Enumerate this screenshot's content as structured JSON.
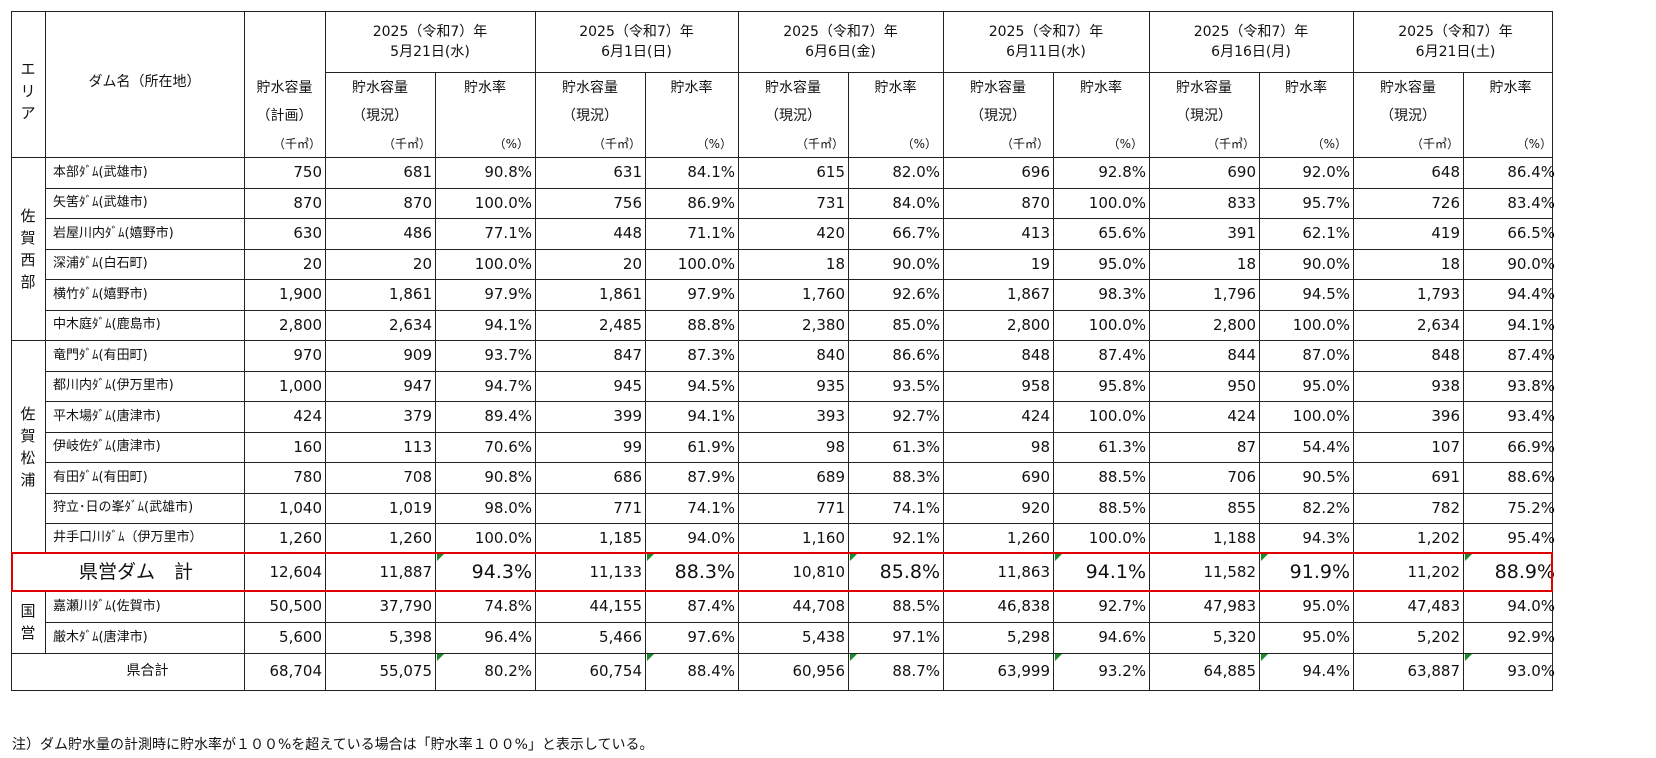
{
  "header": {
    "area_label": "エリア",
    "dam_label": "ダム名（所在地）",
    "plan_cap_label": "貯水容量",
    "plan_sub": "（計画）",
    "unit_cap": "（千㎥）",
    "cur_cap_label": "貯水容量",
    "cur_sub": "（現況）",
    "rate_label": "貯水率",
    "unit_pct": "（%）",
    "year_line": "2025（令和7）年",
    "dates": [
      "5月21日(水)",
      "6月1日(日)",
      "6月6日(金)",
      "6月11日(水)",
      "6月16日(月)",
      "6月21日(土)"
    ]
  },
  "areas": [
    {
      "label": "佐賀西部"
    },
    {
      "label": "佐賀松浦"
    },
    {
      "label": "国営"
    }
  ],
  "rows": [
    {
      "name": "本部ﾀﾞﾑ(武雄市)",
      "plan": "750",
      "cells": [
        [
          "681",
          "90.8%"
        ],
        [
          "631",
          "84.1%"
        ],
        [
          "615",
          "82.0%"
        ],
        [
          "696",
          "92.8%"
        ],
        [
          "690",
          "92.0%"
        ],
        [
          "648",
          "86.4%"
        ]
      ]
    },
    {
      "name": "矢筈ﾀﾞﾑ(武雄市)",
      "plan": "870",
      "cells": [
        [
          "870",
          "100.0%"
        ],
        [
          "756",
          "86.9%"
        ],
        [
          "731",
          "84.0%"
        ],
        [
          "870",
          "100.0%"
        ],
        [
          "833",
          "95.7%"
        ],
        [
          "726",
          "83.4%"
        ]
      ]
    },
    {
      "name": "岩屋川内ﾀﾞﾑ(嬉野市)",
      "plan": "630",
      "cells": [
        [
          "486",
          "77.1%"
        ],
        [
          "448",
          "71.1%"
        ],
        [
          "420",
          "66.7%"
        ],
        [
          "413",
          "65.6%"
        ],
        [
          "391",
          "62.1%"
        ],
        [
          "419",
          "66.5%"
        ]
      ]
    },
    {
      "name": "深浦ﾀﾞﾑ(白石町)",
      "plan": "20",
      "cells": [
        [
          "20",
          "100.0%"
        ],
        [
          "20",
          "100.0%"
        ],
        [
          "18",
          "90.0%"
        ],
        [
          "19",
          "95.0%"
        ],
        [
          "18",
          "90.0%"
        ],
        [
          "18",
          "90.0%"
        ]
      ]
    },
    {
      "name": "横竹ﾀﾞﾑ(嬉野市)",
      "plan": "1,900",
      "cells": [
        [
          "1,861",
          "97.9%"
        ],
        [
          "1,861",
          "97.9%"
        ],
        [
          "1,760",
          "92.6%"
        ],
        [
          "1,867",
          "98.3%"
        ],
        [
          "1,796",
          "94.5%"
        ],
        [
          "1,793",
          "94.4%"
        ]
      ]
    },
    {
      "name": "中木庭ﾀﾞﾑ(鹿島市)",
      "plan": "2,800",
      "cells": [
        [
          "2,634",
          "94.1%"
        ],
        [
          "2,485",
          "88.8%"
        ],
        [
          "2,380",
          "85.0%"
        ],
        [
          "2,800",
          "100.0%"
        ],
        [
          "2,800",
          "100.0%"
        ],
        [
          "2,634",
          "94.1%"
        ]
      ]
    },
    {
      "name": "竜門ﾀﾞﾑ(有田町)",
      "plan": "970",
      "cells": [
        [
          "909",
          "93.7%"
        ],
        [
          "847",
          "87.3%"
        ],
        [
          "840",
          "86.6%"
        ],
        [
          "848",
          "87.4%"
        ],
        [
          "844",
          "87.0%"
        ],
        [
          "848",
          "87.4%"
        ]
      ]
    },
    {
      "name": "都川内ﾀﾞﾑ(伊万里市)",
      "plan": "1,000",
      "cells": [
        [
          "947",
          "94.7%"
        ],
        [
          "945",
          "94.5%"
        ],
        [
          "935",
          "93.5%"
        ],
        [
          "958",
          "95.8%"
        ],
        [
          "950",
          "95.0%"
        ],
        [
          "938",
          "93.8%"
        ]
      ]
    },
    {
      "name": "平木場ﾀﾞﾑ(唐津市)",
      "plan": "424",
      "cells": [
        [
          "379",
          "89.4%"
        ],
        [
          "399",
          "94.1%"
        ],
        [
          "393",
          "92.7%"
        ],
        [
          "424",
          "100.0%"
        ],
        [
          "424",
          "100.0%"
        ],
        [
          "396",
          "93.4%"
        ]
      ]
    },
    {
      "name": "伊岐佐ﾀﾞﾑ(唐津市)",
      "plan": "160",
      "cells": [
        [
          "113",
          "70.6%"
        ],
        [
          "99",
          "61.9%"
        ],
        [
          "98",
          "61.3%"
        ],
        [
          "98",
          "61.3%"
        ],
        [
          "87",
          "54.4%"
        ],
        [
          "107",
          "66.9%"
        ]
      ]
    },
    {
      "name": "有田ﾀﾞﾑ(有田町)",
      "plan": "780",
      "cells": [
        [
          "708",
          "90.8%"
        ],
        [
          "686",
          "87.9%"
        ],
        [
          "689",
          "88.3%"
        ],
        [
          "690",
          "88.5%"
        ],
        [
          "706",
          "90.5%"
        ],
        [
          "691",
          "88.6%"
        ]
      ]
    },
    {
      "name": "狩立･日の峯ﾀﾞﾑ(武雄市)",
      "plan": "1,040",
      "cells": [
        [
          "1,019",
          "98.0%"
        ],
        [
          "771",
          "74.1%"
        ],
        [
          "771",
          "74.1%"
        ],
        [
          "920",
          "88.5%"
        ],
        [
          "855",
          "82.2%"
        ],
        [
          "782",
          "75.2%"
        ]
      ]
    },
    {
      "name": "井手口川ﾀﾞﾑ（伊万里市）",
      "plan": "1,260",
      "cells": [
        [
          "1,260",
          "100.0%"
        ],
        [
          "1,185",
          "94.0%"
        ],
        [
          "1,160",
          "92.1%"
        ],
        [
          "1,260",
          "100.0%"
        ],
        [
          "1,188",
          "94.3%"
        ],
        [
          "1,202",
          "95.4%"
        ]
      ]
    },
    {
      "name": "県営ダム　計",
      "plan": "12,604",
      "cells": [
        [
          "11,887",
          "94.3%"
        ],
        [
          "11,133",
          "88.3%"
        ],
        [
          "10,810",
          "85.8%"
        ],
        [
          "11,863",
          "94.1%"
        ],
        [
          "11,582",
          "91.9%"
        ],
        [
          "11,202",
          "88.9%"
        ]
      ]
    },
    {
      "name": "嘉瀬川ﾀﾞﾑ(佐賀市)",
      "plan": "50,500",
      "cells": [
        [
          "37,790",
          "74.8%"
        ],
        [
          "44,155",
          "87.4%"
        ],
        [
          "44,708",
          "88.5%"
        ],
        [
          "46,838",
          "92.7%"
        ],
        [
          "47,983",
          "95.0%"
        ],
        [
          "47,483",
          "94.0%"
        ]
      ]
    },
    {
      "name": "厳木ﾀﾞﾑ(唐津市)",
      "plan": "5,600",
      "cells": [
        [
          "5,398",
          "96.4%"
        ],
        [
          "5,466",
          "97.6%"
        ],
        [
          "5,438",
          "97.1%"
        ],
        [
          "5,298",
          "94.6%"
        ],
        [
          "5,320",
          "95.0%"
        ],
        [
          "5,202",
          "92.9%"
        ]
      ]
    },
    {
      "name": "県合計",
      "plan": "68,704",
      "cells": [
        [
          "55,075",
          "80.2%"
        ],
        [
          "60,754",
          "88.4%"
        ],
        [
          "60,956",
          "88.7%"
        ],
        [
          "63,999",
          "93.2%"
        ],
        [
          "64,885",
          "94.4%"
        ],
        [
          "63,887",
          "93.0%"
        ]
      ]
    }
  ],
  "note": "注）ダム貯水量の計測時に貯水率が１００%を超えている場合は「貯水率１００%」と表示している。",
  "colors": {
    "highlight_border": "#e00000",
    "corner_mark": "#1a8a2a"
  }
}
